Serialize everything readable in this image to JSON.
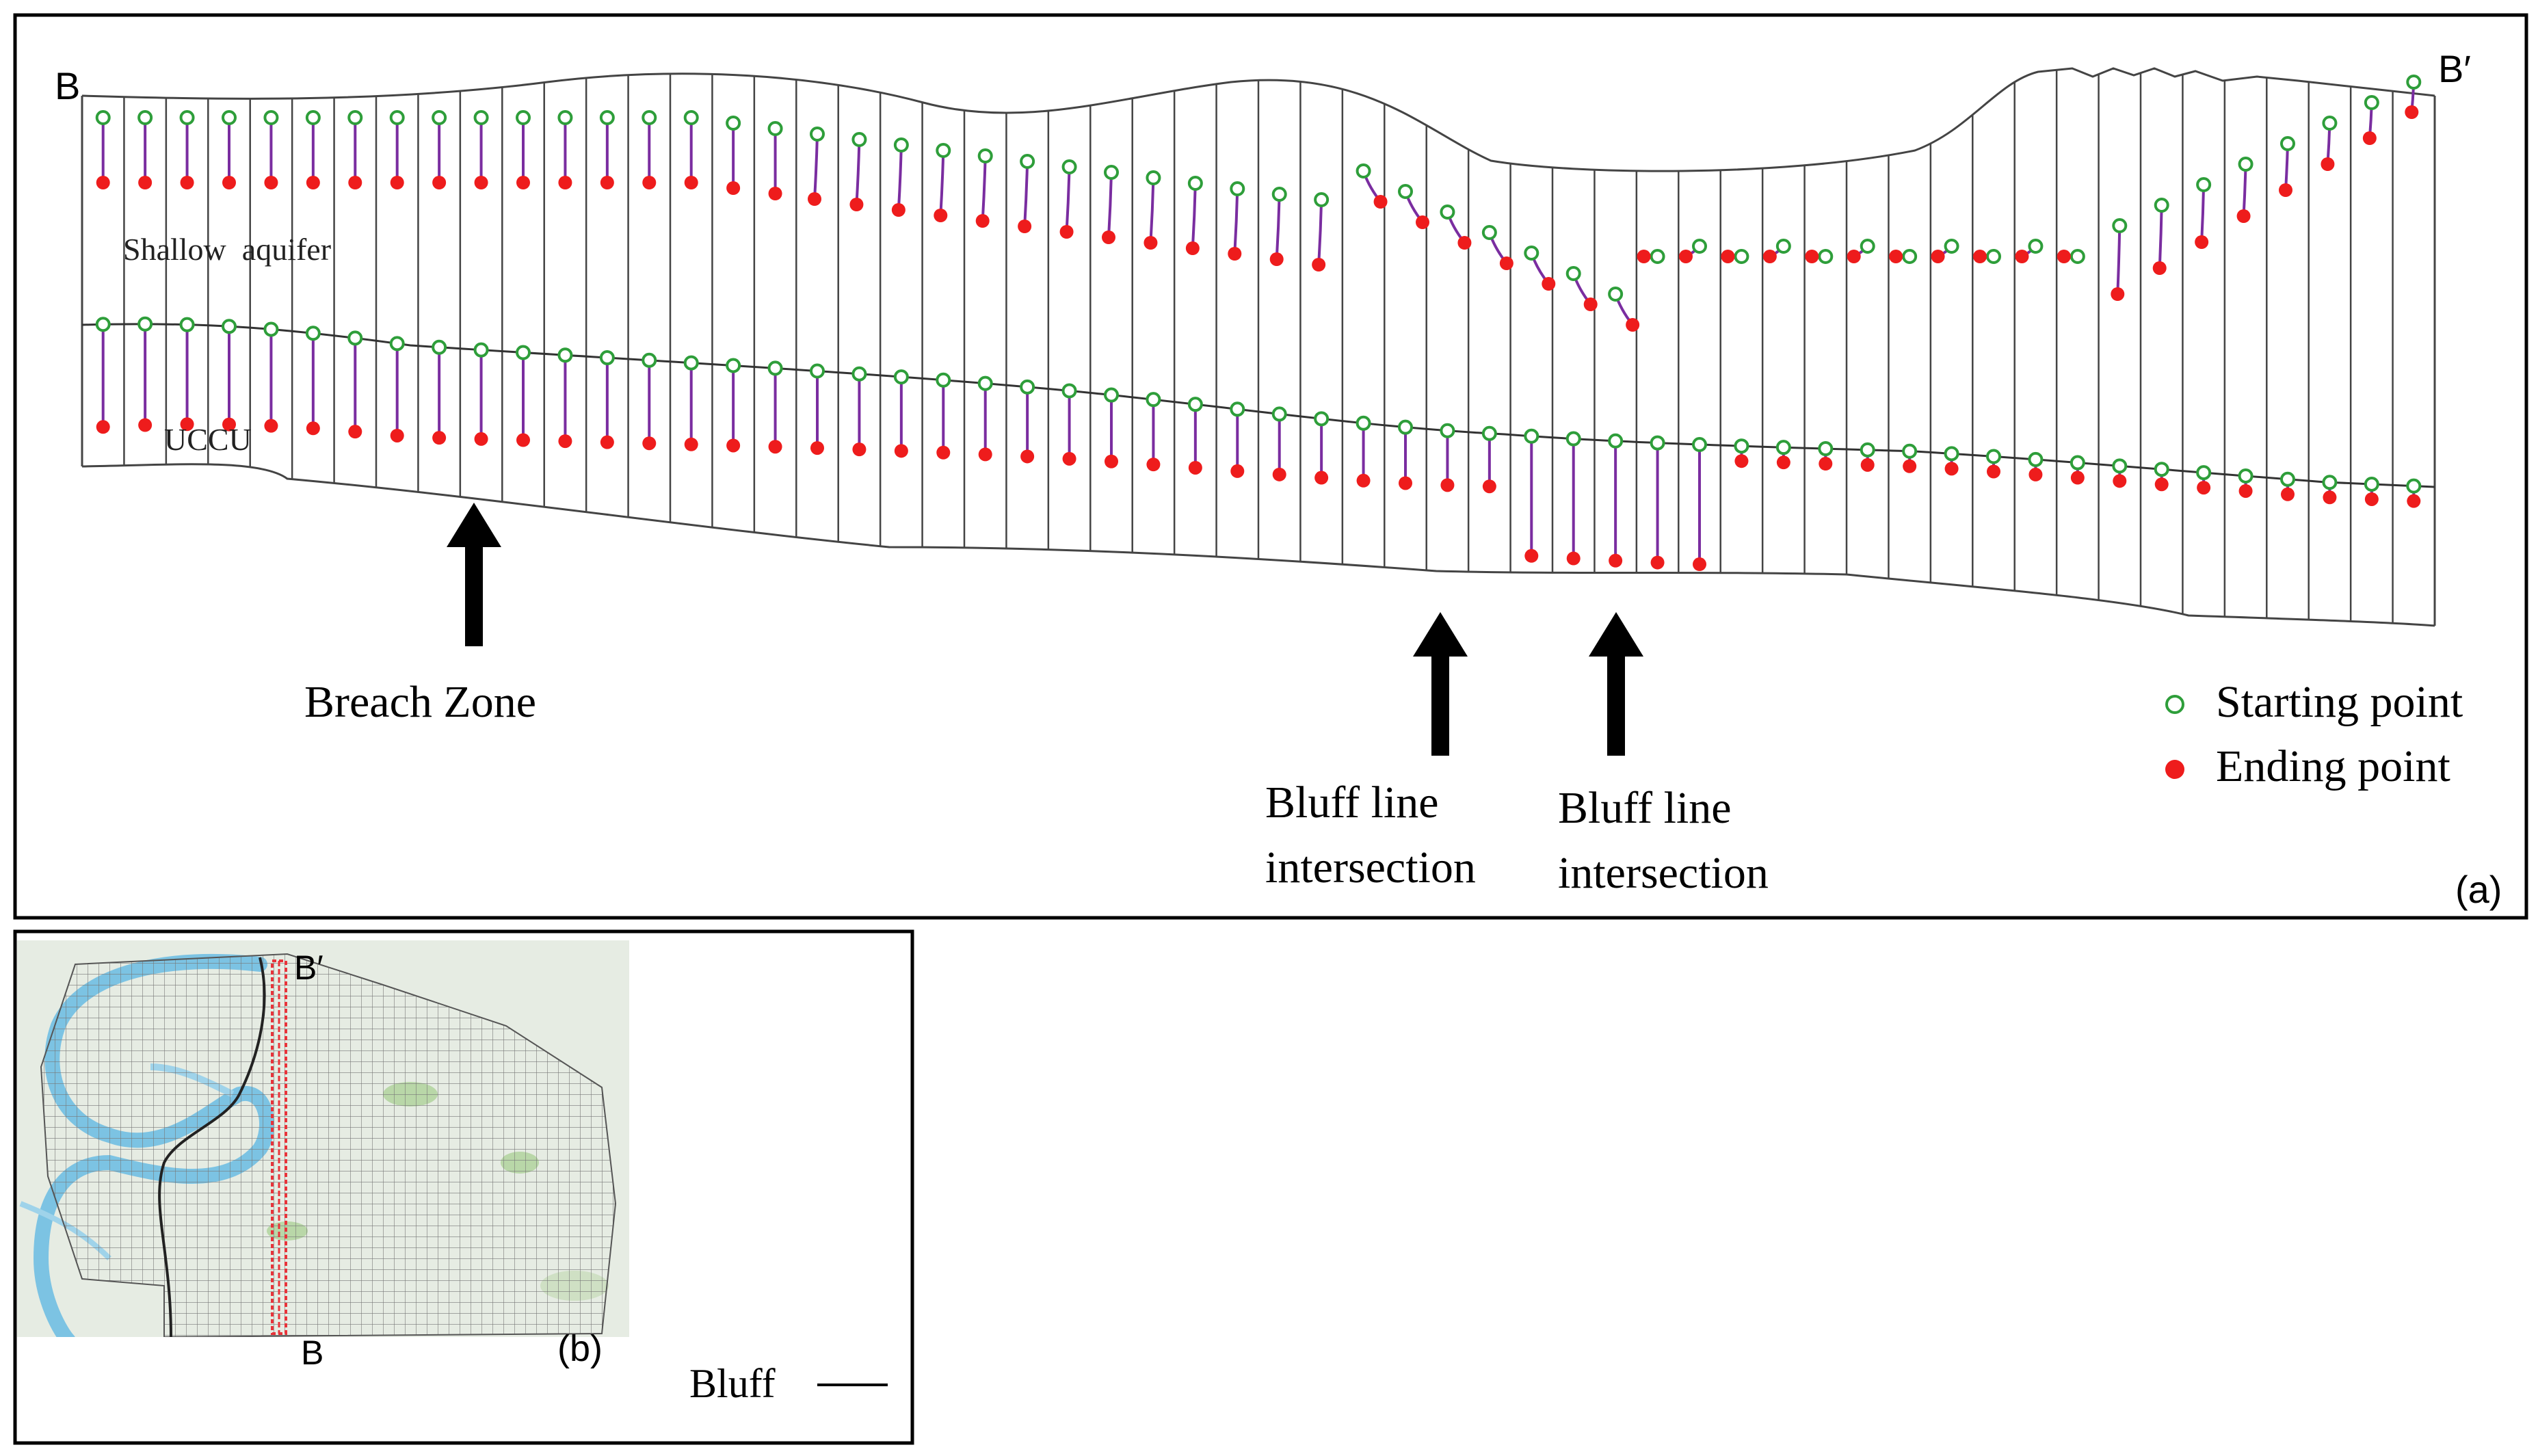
{
  "panel_a": {
    "label": "(a)",
    "section_start_label": "B",
    "section_end_label": "B′",
    "layer_labels": {
      "upper": "Shallow  aquifer",
      "lower": "UCCU"
    },
    "annotations": {
      "breach_zone": "Breach Zone",
      "bluff_1_line1": "Bluff line",
      "bluff_1_line2": "intersection",
      "bluff_2_line1": "Bluff line",
      "bluff_2_line2": "intersection"
    },
    "legend": {
      "start": "Starting point",
      "end": "Ending point",
      "start_color": "#2e9e3a",
      "end_color": "#ee1c1c"
    },
    "path_color": "#7a2da0",
    "section_count": 56
  },
  "panel_b": {
    "label": "(b)",
    "top_label": "B′",
    "bottom_label": "B",
    "legend_bluff": "Bluff",
    "river_color": "#7cc3e3",
    "land_color": "#e6ece3",
    "transect_color": "#e8333a"
  }
}
